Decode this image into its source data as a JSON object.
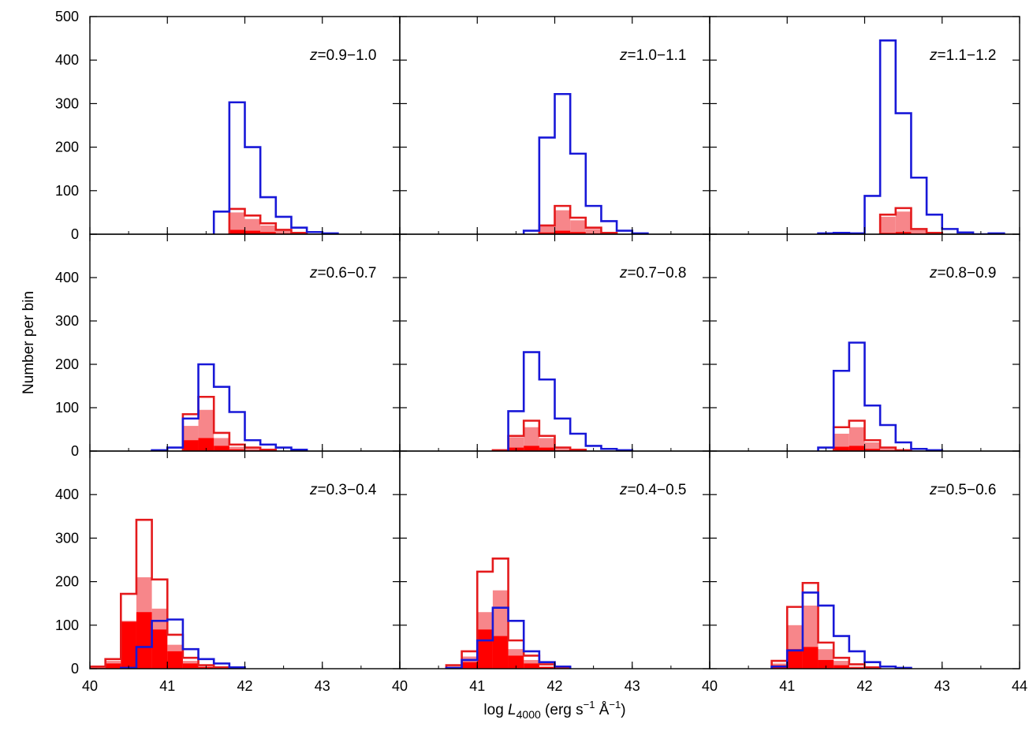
{
  "chart_data": {
    "type": "histogram-grid",
    "xlabel": {
      "prefix": "log ",
      "var": "L",
      "sub": "4000",
      "units_a": " (erg s",
      "exp1": "−1",
      "units_b": " Å",
      "exp2": "−1",
      "units_c": ")"
    },
    "ylabel": "Number per bin",
    "xlim": [
      40,
      44
    ],
    "ylim": [
      0,
      500
    ],
    "bin_width": 0.2,
    "x_tick_labels": [
      "40",
      "41",
      "42",
      "43"
    ],
    "x_tick_label_last": "44",
    "y_tick_labels": [
      "0",
      "100",
      "200",
      "300",
      "400",
      "500"
    ],
    "panels": [
      {
        "label": "z=0.9−1.0",
        "z_var": "z",
        "z_range": "=0.9−1.0",
        "blue": [
          [
            41.6,
            52
          ],
          [
            41.8,
            303
          ],
          [
            42.0,
            200
          ],
          [
            42.2,
            85
          ],
          [
            42.4,
            40
          ],
          [
            42.6,
            15
          ],
          [
            42.8,
            5
          ],
          [
            43.0,
            2
          ]
        ],
        "red_outline": [
          [
            41.8,
            58
          ],
          [
            42.0,
            43
          ],
          [
            42.2,
            25
          ],
          [
            42.4,
            10
          ],
          [
            42.6,
            3
          ]
        ],
        "red_medium": [
          [
            41.8,
            50
          ],
          [
            42.0,
            35
          ],
          [
            42.2,
            20
          ],
          [
            42.4,
            8
          ],
          [
            42.6,
            2
          ]
        ],
        "red_solid": [
          [
            41.8,
            10
          ],
          [
            42.0,
            8
          ],
          [
            42.2,
            5
          ],
          [
            42.4,
            2
          ]
        ]
      },
      {
        "label": "z=1.0−1.1",
        "z_var": "z",
        "z_range": "=1.0−1.1",
        "blue": [
          [
            41.6,
            8
          ],
          [
            41.8,
            222
          ],
          [
            42.0,
            322
          ],
          [
            42.2,
            185
          ],
          [
            42.4,
            65
          ],
          [
            42.6,
            30
          ],
          [
            42.8,
            8
          ],
          [
            43.0,
            2
          ]
        ],
        "red_outline": [
          [
            41.8,
            20
          ],
          [
            42.0,
            65
          ],
          [
            42.2,
            38
          ],
          [
            42.4,
            15
          ],
          [
            42.6,
            3
          ]
        ],
        "red_medium": [
          [
            41.8,
            18
          ],
          [
            42.0,
            55
          ],
          [
            42.2,
            32
          ],
          [
            42.4,
            12
          ],
          [
            42.6,
            2
          ]
        ],
        "red_solid": [
          [
            41.8,
            4
          ],
          [
            42.0,
            8
          ],
          [
            42.2,
            5
          ],
          [
            42.4,
            2
          ]
        ]
      },
      {
        "label": "z=1.1−1.2",
        "z_var": "z",
        "z_range": "=1.1−1.2",
        "blue": [
          [
            41.4,
            2
          ],
          [
            41.6,
            3
          ],
          [
            41.8,
            2
          ],
          [
            42.0,
            88
          ],
          [
            42.2,
            445
          ],
          [
            42.4,
            278
          ],
          [
            42.6,
            130
          ],
          [
            42.8,
            45
          ],
          [
            43.0,
            12
          ],
          [
            43.2,
            4
          ],
          [
            43.6,
            2
          ]
        ],
        "red_outline": [
          [
            42.2,
            45
          ],
          [
            42.4,
            60
          ],
          [
            42.6,
            12
          ],
          [
            42.8,
            3
          ]
        ],
        "red_medium": [
          [
            42.2,
            40
          ],
          [
            42.4,
            52
          ],
          [
            42.6,
            10
          ],
          [
            42.8,
            2
          ]
        ],
        "red_solid": [
          [
            42.2,
            3
          ],
          [
            42.4,
            5
          ],
          [
            42.6,
            2
          ]
        ]
      },
      {
        "label": "z=0.6−0.7",
        "z_var": "z",
        "z_range": "=0.6−0.7",
        "blue": [
          [
            40.8,
            2
          ],
          [
            41.0,
            8
          ],
          [
            41.2,
            75
          ],
          [
            41.4,
            200
          ],
          [
            41.6,
            148
          ],
          [
            41.8,
            90
          ],
          [
            42.0,
            25
          ],
          [
            42.2,
            15
          ],
          [
            42.4,
            8
          ],
          [
            42.6,
            3
          ]
        ],
        "red_outline": [
          [
            41.2,
            85
          ],
          [
            41.4,
            125
          ],
          [
            41.6,
            42
          ],
          [
            41.8,
            15
          ],
          [
            42.0,
            8
          ],
          [
            42.2,
            3
          ]
        ],
        "red_medium": [
          [
            41.2,
            58
          ],
          [
            41.4,
            95
          ],
          [
            41.6,
            30
          ],
          [
            41.8,
            10
          ],
          [
            42.0,
            5
          ],
          [
            42.2,
            2
          ]
        ],
        "red_solid": [
          [
            41.2,
            25
          ],
          [
            41.4,
            30
          ],
          [
            41.6,
            12
          ],
          [
            41.8,
            4
          ],
          [
            42.0,
            2
          ]
        ]
      },
      {
        "label": "z=0.7−0.8",
        "z_var": "z",
        "z_range": "=0.7−0.8",
        "blue": [
          [
            41.4,
            92
          ],
          [
            41.6,
            228
          ],
          [
            41.8,
            165
          ],
          [
            42.0,
            75
          ],
          [
            42.2,
            40
          ],
          [
            42.4,
            12
          ],
          [
            42.6,
            5
          ],
          [
            42.8,
            2
          ]
        ],
        "red_outline": [
          [
            41.2,
            2
          ],
          [
            41.4,
            35
          ],
          [
            41.6,
            70
          ],
          [
            41.8,
            35
          ],
          [
            42.0,
            8
          ],
          [
            42.2,
            3
          ]
        ],
        "red_medium": [
          [
            41.4,
            32
          ],
          [
            41.6,
            55
          ],
          [
            41.8,
            30
          ],
          [
            42.0,
            5
          ],
          [
            42.2,
            2
          ]
        ],
        "red_solid": [
          [
            41.4,
            8
          ],
          [
            41.6,
            12
          ],
          [
            41.8,
            8
          ],
          [
            42.0,
            2
          ]
        ]
      },
      {
        "label": "z=0.8−0.9",
        "z_var": "z",
        "z_range": "=0.8−0.9",
        "blue": [
          [
            41.4,
            8
          ],
          [
            41.6,
            185
          ],
          [
            41.8,
            250
          ],
          [
            42.0,
            105
          ],
          [
            42.2,
            60
          ],
          [
            42.4,
            20
          ],
          [
            42.6,
            5
          ],
          [
            42.8,
            2
          ]
        ],
        "red_outline": [
          [
            41.6,
            55
          ],
          [
            41.8,
            70
          ],
          [
            42.0,
            25
          ],
          [
            42.2,
            8
          ],
          [
            42.4,
            2
          ]
        ],
        "red_medium": [
          [
            41.6,
            40
          ],
          [
            41.8,
            55
          ],
          [
            42.0,
            20
          ],
          [
            42.2,
            5
          ]
        ],
        "red_solid": [
          [
            41.6,
            10
          ],
          [
            41.8,
            12
          ],
          [
            42.0,
            5
          ],
          [
            42.2,
            2
          ]
        ]
      },
      {
        "label": "z=0.3−0.4",
        "z_var": "z",
        "z_range": "=0.3−0.4",
        "blue": [
          [
            40.4,
            2
          ],
          [
            40.6,
            50
          ],
          [
            40.8,
            110
          ],
          [
            41.0,
            113
          ],
          [
            41.2,
            45
          ],
          [
            41.4,
            22
          ],
          [
            41.6,
            12
          ],
          [
            41.8,
            3
          ]
        ],
        "red_outline": [
          [
            40.0,
            5
          ],
          [
            40.2,
            22
          ],
          [
            40.4,
            172
          ],
          [
            40.6,
            342
          ],
          [
            40.8,
            205
          ],
          [
            41.0,
            78
          ],
          [
            41.2,
            25
          ],
          [
            41.4,
            8
          ],
          [
            41.6,
            3
          ]
        ],
        "red_medium": [
          [
            40.0,
            3
          ],
          [
            40.2,
            18
          ],
          [
            40.4,
            110
          ],
          [
            40.6,
            210
          ],
          [
            40.8,
            138
          ],
          [
            41.0,
            55
          ],
          [
            41.2,
            18
          ],
          [
            41.4,
            5
          ],
          [
            41.6,
            2
          ]
        ],
        "red_solid": [
          [
            40.0,
            2
          ],
          [
            40.2,
            12
          ],
          [
            40.4,
            108
          ],
          [
            40.6,
            130
          ],
          [
            40.8,
            90
          ],
          [
            41.0,
            40
          ],
          [
            41.2,
            12
          ],
          [
            41.4,
            4
          ]
        ]
      },
      {
        "label": "z=0.4−0.5",
        "z_var": "z",
        "z_range": "=0.4−0.5",
        "blue": [
          [
            40.6,
            2
          ],
          [
            40.8,
            20
          ],
          [
            41.0,
            65
          ],
          [
            41.2,
            140
          ],
          [
            41.4,
            110
          ],
          [
            41.6,
            40
          ],
          [
            41.8,
            15
          ],
          [
            42.0,
            5
          ]
        ],
        "red_outline": [
          [
            40.6,
            8
          ],
          [
            40.8,
            40
          ],
          [
            41.0,
            223
          ],
          [
            41.2,
            253
          ],
          [
            41.4,
            65
          ],
          [
            41.6,
            30
          ],
          [
            41.8,
            10
          ],
          [
            42.0,
            3
          ]
        ],
        "red_medium": [
          [
            40.6,
            5
          ],
          [
            40.8,
            28
          ],
          [
            41.0,
            130
          ],
          [
            41.2,
            180
          ],
          [
            41.4,
            45
          ],
          [
            41.6,
            20
          ],
          [
            41.8,
            5
          ],
          [
            42.0,
            2
          ]
        ],
        "red_solid": [
          [
            40.6,
            3
          ],
          [
            40.8,
            15
          ],
          [
            41.0,
            90
          ],
          [
            41.2,
            75
          ],
          [
            41.4,
            30
          ],
          [
            41.6,
            12
          ],
          [
            41.8,
            4
          ]
        ]
      },
      {
        "label": "z=0.5−0.6",
        "z_var": "z",
        "z_range": "=0.5−0.6",
        "blue": [
          [
            40.8,
            5
          ],
          [
            41.0,
            42
          ],
          [
            41.2,
            175
          ],
          [
            41.4,
            145
          ],
          [
            41.6,
            75
          ],
          [
            41.8,
            40
          ],
          [
            42.0,
            15
          ],
          [
            42.2,
            5
          ],
          [
            42.4,
            2
          ]
        ],
        "red_outline": [
          [
            40.8,
            18
          ],
          [
            41.0,
            142
          ],
          [
            41.2,
            197
          ],
          [
            41.4,
            60
          ],
          [
            41.6,
            25
          ],
          [
            41.8,
            10
          ],
          [
            42.0,
            3
          ]
        ],
        "red_medium": [
          [
            40.8,
            12
          ],
          [
            41.0,
            100
          ],
          [
            41.2,
            145
          ],
          [
            41.4,
            45
          ],
          [
            41.6,
            18
          ],
          [
            41.8,
            5
          ],
          [
            42.0,
            2
          ]
        ],
        "red_solid": [
          [
            40.8,
            8
          ],
          [
            41.0,
            45
          ],
          [
            41.2,
            50
          ],
          [
            41.4,
            20
          ],
          [
            41.6,
            8
          ],
          [
            41.8,
            3
          ]
        ]
      }
    ],
    "colors": {
      "blue": "#1818d8",
      "red": "#e41a1c",
      "red_medium": "#f7868a",
      "red_solid": "#ff0000",
      "frame": "#000000"
    }
  }
}
